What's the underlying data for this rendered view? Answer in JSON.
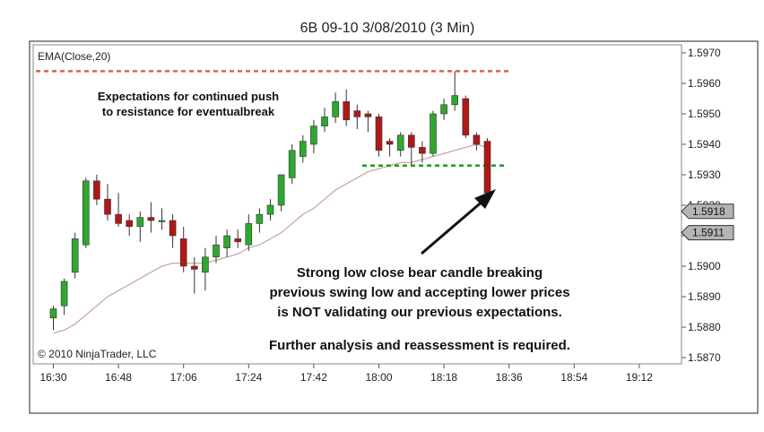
{
  "chart_data": {
    "type": "candlestick",
    "title": "6B 09-10  3/08/2010 (3 Min)",
    "indicator_label": "EMA(Close,20)",
    "copyright": "© 2010 NinjaTrader, LLC",
    "ylim": [
      1.5867,
      1.5973
    ],
    "y_ticks": [
      "1.5970",
      "1.5960",
      "1.5950",
      "1.5940",
      "1.5930",
      "1.5920",
      "1.5910",
      "1.5900",
      "1.5890",
      "1.5880",
      "1.5870"
    ],
    "x_ticks": [
      "16:30",
      "16:48",
      "17:06",
      "17:24",
      "17:42",
      "18:00",
      "18:18",
      "18:36",
      "18:54",
      "19:12"
    ],
    "price_markers": [
      "1.5918",
      "1.5911"
    ],
    "annotations": {
      "top_note_line1": "Expectations for continued push",
      "top_note_line2": "to resistance for eventualbreak",
      "main_note_line1": "Strong low close bear candle breaking",
      "main_note_line2": "previous swing low and accepting lower prices",
      "main_note_line3": "is NOT validating our previous expectations.",
      "main_note_line4": "Further analysis and reassessment is required."
    },
    "resistance_level": 1.5964,
    "support_level": 1.5933,
    "candles": [
      {
        "o": 1.5883,
        "h": 1.5887,
        "l": 1.5879,
        "c": 1.5886
      },
      {
        "o": 1.5887,
        "h": 1.5896,
        "l": 1.5884,
        "c": 1.5895
      },
      {
        "o": 1.5898,
        "h": 1.5911,
        "l": 1.5896,
        "c": 1.5909
      },
      {
        "o": 1.5907,
        "h": 1.5929,
        "l": 1.5906,
        "c": 1.5928
      },
      {
        "o": 1.5928,
        "h": 1.593,
        "l": 1.592,
        "c": 1.5922
      },
      {
        "o": 1.5922,
        "h": 1.5927,
        "l": 1.5915,
        "c": 1.5917
      },
      {
        "o": 1.5917,
        "h": 1.5924,
        "l": 1.5913,
        "c": 1.5914
      },
      {
        "o": 1.5915,
        "h": 1.5917,
        "l": 1.591,
        "c": 1.5913
      },
      {
        "o": 1.5913,
        "h": 1.5918,
        "l": 1.5908,
        "c": 1.5916
      },
      {
        "o": 1.5916,
        "h": 1.5921,
        "l": 1.5911,
        "c": 1.5915
      },
      {
        "o": 1.5915,
        "h": 1.5919,
        "l": 1.5912,
        "c": 1.5915
      },
      {
        "o": 1.5915,
        "h": 1.5917,
        "l": 1.5906,
        "c": 1.591
      },
      {
        "o": 1.5909,
        "h": 1.5913,
        "l": 1.5898,
        "c": 1.59
      },
      {
        "o": 1.59,
        "h": 1.5903,
        "l": 1.5891,
        "c": 1.5899
      },
      {
        "o": 1.5898,
        "h": 1.5906,
        "l": 1.5892,
        "c": 1.5903
      },
      {
        "o": 1.5903,
        "h": 1.591,
        "l": 1.5901,
        "c": 1.5907
      },
      {
        "o": 1.5906,
        "h": 1.5912,
        "l": 1.5903,
        "c": 1.591
      },
      {
        "o": 1.5909,
        "h": 1.5912,
        "l": 1.5906,
        "c": 1.5908
      },
      {
        "o": 1.5907,
        "h": 1.5917,
        "l": 1.5905,
        "c": 1.5914
      },
      {
        "o": 1.5914,
        "h": 1.5919,
        "l": 1.5911,
        "c": 1.5917
      },
      {
        "o": 1.5917,
        "h": 1.5922,
        "l": 1.5915,
        "c": 1.592
      },
      {
        "o": 1.592,
        "h": 1.593,
        "l": 1.5918,
        "c": 1.593
      },
      {
        "o": 1.5929,
        "h": 1.594,
        "l": 1.5927,
        "c": 1.5938
      },
      {
        "o": 1.5936,
        "h": 1.5943,
        "l": 1.5934,
        "c": 1.5941
      },
      {
        "o": 1.594,
        "h": 1.5948,
        "l": 1.5937,
        "c": 1.5946
      },
      {
        "o": 1.5946,
        "h": 1.5952,
        "l": 1.5944,
        "c": 1.5949
      },
      {
        "o": 1.5949,
        "h": 1.5957,
        "l": 1.5947,
        "c": 1.5954
      },
      {
        "o": 1.5954,
        "h": 1.5958,
        "l": 1.5946,
        "c": 1.5948
      },
      {
        "o": 1.5951,
        "h": 1.5953,
        "l": 1.5945,
        "c": 1.5949
      },
      {
        "o": 1.595,
        "h": 1.5951,
        "l": 1.5944,
        "c": 1.5949
      },
      {
        "o": 1.5949,
        "h": 1.595,
        "l": 1.5936,
        "c": 1.5938
      },
      {
        "o": 1.5941,
        "h": 1.5942,
        "l": 1.5936,
        "c": 1.594
      },
      {
        "o": 1.5938,
        "h": 1.5944,
        "l": 1.5936,
        "c": 1.5943
      },
      {
        "o": 1.5943,
        "h": 1.5944,
        "l": 1.5933,
        "c": 1.5939
      },
      {
        "o": 1.5939,
        "h": 1.5941,
        "l": 1.5934,
        "c": 1.5937
      },
      {
        "o": 1.5937,
        "h": 1.5951,
        "l": 1.5936,
        "c": 1.595
      },
      {
        "o": 1.595,
        "h": 1.5955,
        "l": 1.5948,
        "c": 1.5953
      },
      {
        "o": 1.5953,
        "h": 1.5964,
        "l": 1.5951,
        "c": 1.5956
      },
      {
        "o": 1.5955,
        "h": 1.5956,
        "l": 1.5942,
        "c": 1.5943
      },
      {
        "o": 1.5943,
        "h": 1.5944,
        "l": 1.5938,
        "c": 1.594
      },
      {
        "o": 1.5941,
        "h": 1.5942,
        "l": 1.5921,
        "c": 1.5924
      }
    ],
    "ema": [
      1.5878,
      1.5879,
      1.5881,
      1.5884,
      1.5887,
      1.589,
      1.5892,
      1.5894,
      1.5896,
      1.5898,
      1.59,
      1.5901,
      1.5901,
      1.5901,
      1.5901,
      1.5902,
      1.5903,
      1.5904,
      1.5906,
      1.5907,
      1.5909,
      1.5911,
      1.5914,
      1.5917,
      1.5919,
      1.5922,
      1.5925,
      1.5927,
      1.5929,
      1.5931,
      1.5932,
      1.5933,
      1.5934,
      1.5934,
      1.5935,
      1.5936,
      1.5937,
      1.5938,
      1.5939,
      1.594,
      1.5939
    ],
    "colors": {
      "bull": "#2ea82e",
      "bear": "#b01818",
      "resistance": "#e05a5a",
      "support": "#1d9a1d",
      "ema": "#c8a8a8"
    }
  }
}
